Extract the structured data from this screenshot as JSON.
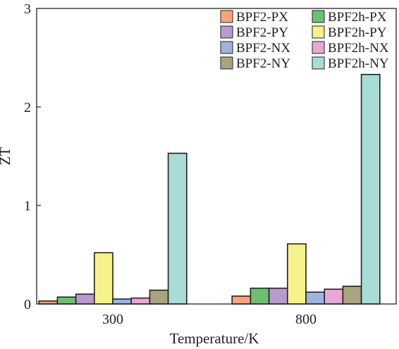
{
  "chart_data": {
    "type": "bar",
    "categories": [
      "300",
      "800"
    ],
    "series": [
      {
        "name": "BPF2-PX",
        "color": "#f7a47c",
        "values": [
          0.03,
          0.08
        ]
      },
      {
        "name": "BPF2h-PX",
        "color": "#6fbf73",
        "values": [
          0.07,
          0.16
        ]
      },
      {
        "name": "BPF2-PY",
        "color": "#b79bcc",
        "values": [
          0.1,
          0.16
        ]
      },
      {
        "name": "BPF2h-PY",
        "color": "#f5f28a",
        "values": [
          0.52,
          0.61
        ]
      },
      {
        "name": "BPF2-NX",
        "color": "#9fb3dd",
        "values": [
          0.05,
          0.12
        ]
      },
      {
        "name": "BPF2h-NX",
        "color": "#e9a7d6",
        "values": [
          0.06,
          0.15
        ]
      },
      {
        "name": "BPF2-NY",
        "color": "#a9a47f",
        "values": [
          0.14,
          0.18
        ]
      },
      {
        "name": "BPF2h-NY",
        "color": "#a8dcd6",
        "values": [
          1.53,
          2.33
        ]
      }
    ],
    "xlabel": "Temperature/K",
    "ylabel": "ZT",
    "ylim": [
      0,
      3
    ],
    "yticks": [
      "0",
      "1",
      "2",
      "3"
    ],
    "legend_position": "top-right",
    "grid": false
  }
}
